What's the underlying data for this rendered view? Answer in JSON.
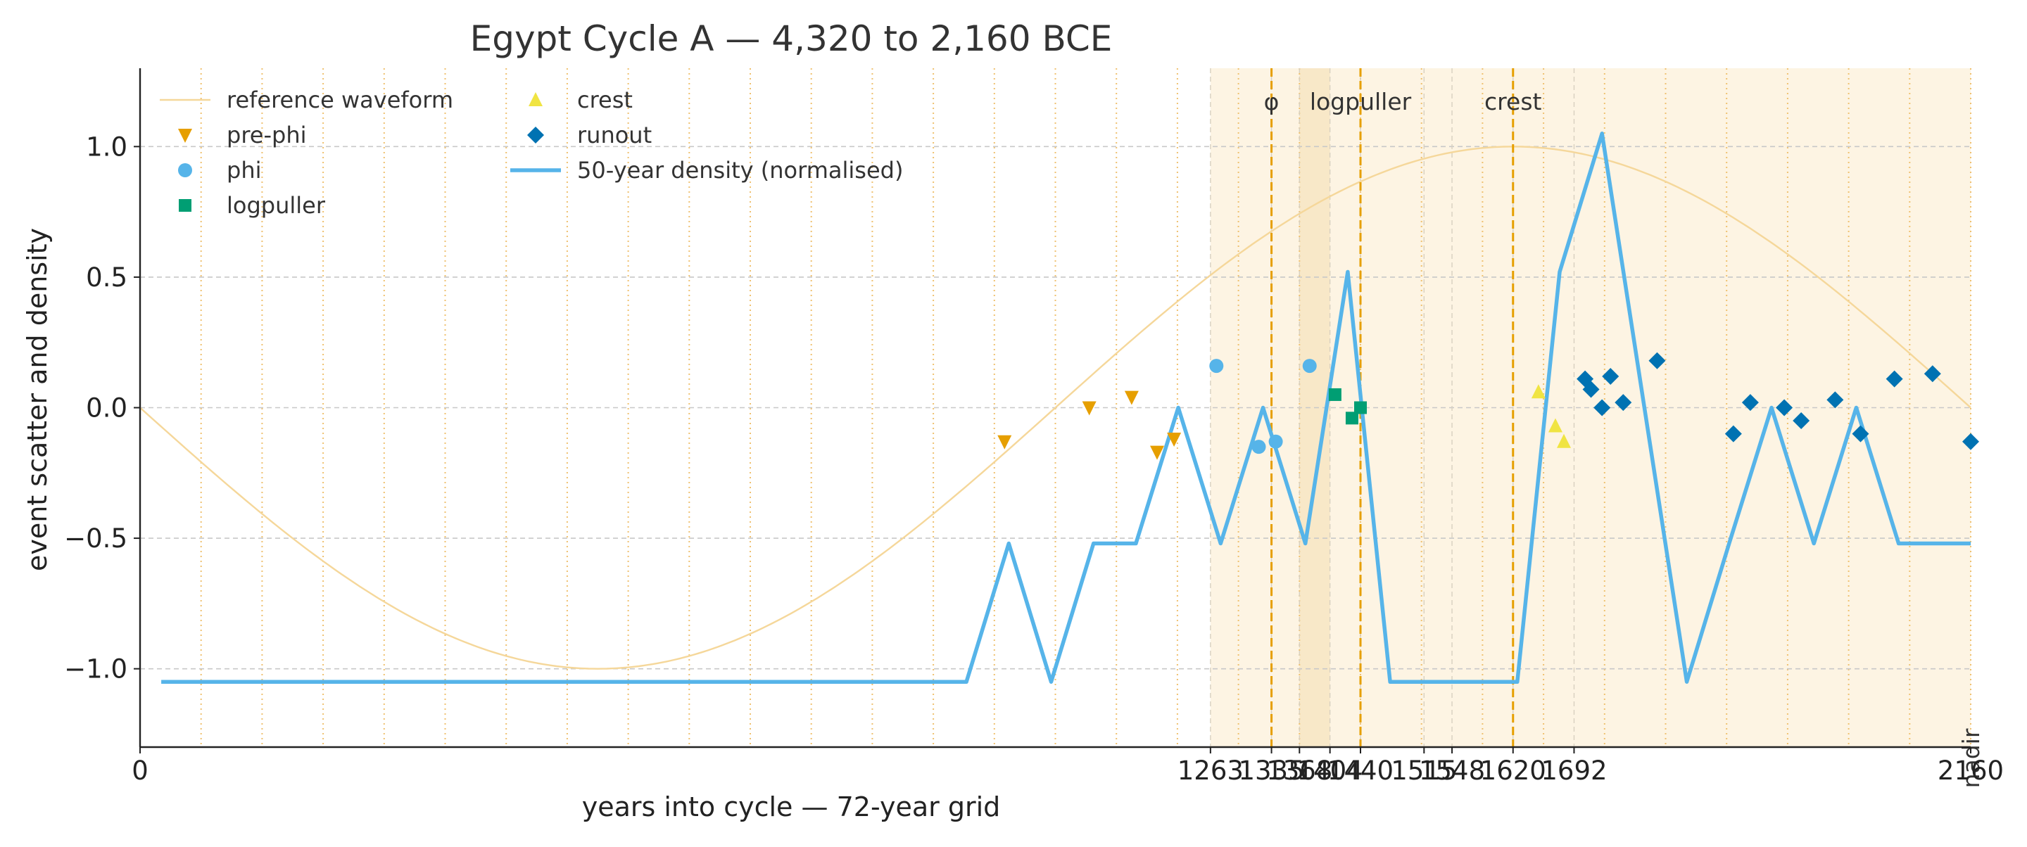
{
  "chart_data": {
    "type": "scatter",
    "title": "Egypt Cycle A — 4,320 to 2,160 BCE",
    "xlabel": "years into cycle — 72-year grid",
    "ylabel": "event scatter and density",
    "xlim": [
      0,
      2160
    ],
    "ylim": [
      -1.3,
      1.3
    ],
    "grid": true,
    "legend_position": "top-left",
    "x_ticks": [
      0,
      1263,
      1335,
      1368,
      1404,
      1440,
      1515,
      1548,
      1620,
      1692,
      2160
    ],
    "x_tick_labels": [
      "0",
      "1263",
      "1335",
      "1368",
      "1404",
      "1440",
      "1515",
      "1548",
      "1620",
      "1692",
      "2160"
    ],
    "y_ticks": [
      -1.0,
      -0.5,
      0.0,
      0.5,
      1.0
    ],
    "y_tick_labels": [
      "−1.0",
      "−0.5",
      "0.0",
      "0.5",
      "1.0"
    ],
    "vertical_grid_step": 72,
    "shaded_region": [
      1263,
      2160
    ],
    "phi_band": [
      1368,
      1404
    ],
    "markers": [
      {
        "x": 1335,
        "label": "φ"
      },
      {
        "x": 1440,
        "label": "logpuller"
      },
      {
        "x": 1620,
        "label": "crest"
      }
    ],
    "end_label": {
      "x": 2160,
      "label": "nadir"
    },
    "reference_waveform": {
      "name": "reference waveform",
      "form": "negative sine over one cycle",
      "amplitude": 1.0,
      "period": 2160,
      "color": "#f5d79a"
    },
    "series": [
      {
        "name": "pre-phi",
        "marker": "triangle-down",
        "color": "#E69F00",
        "points": [
          [
            1020,
            -0.13
          ],
          [
            1120,
            0.0
          ],
          [
            1170,
            0.04
          ],
          [
            1200,
            -0.17
          ],
          [
            1220,
            -0.12
          ]
        ]
      },
      {
        "name": "phi",
        "marker": "circle",
        "color": "#56B4E9",
        "points": [
          [
            1270,
            0.16
          ],
          [
            1320,
            -0.15
          ],
          [
            1340,
            -0.13
          ],
          [
            1380,
            0.16
          ]
        ]
      },
      {
        "name": "logpuller",
        "marker": "square",
        "color": "#009E73",
        "points": [
          [
            1410,
            0.05
          ],
          [
            1430,
            -0.04
          ],
          [
            1440,
            0.0
          ]
        ]
      },
      {
        "name": "crest",
        "marker": "triangle-up",
        "color": "#F0E442",
        "points": [
          [
            1650,
            0.06
          ],
          [
            1670,
            -0.07
          ],
          [
            1680,
            -0.13
          ]
        ]
      },
      {
        "name": "runout",
        "marker": "diamond",
        "color": "#0072B2",
        "points": [
          [
            1705,
            0.11
          ],
          [
            1712,
            0.07
          ],
          [
            1725,
            0.0
          ],
          [
            1735,
            0.12
          ],
          [
            1750,
            0.02
          ],
          [
            1790,
            0.18
          ],
          [
            1880,
            -0.1
          ],
          [
            1900,
            0.02
          ],
          [
            1940,
            0.0
          ],
          [
            1960,
            -0.05
          ],
          [
            2000,
            0.03
          ],
          [
            2030,
            -0.1
          ],
          [
            2070,
            0.11
          ],
          [
            2115,
            0.13
          ],
          [
            2160,
            -0.13
          ]
        ]
      },
      {
        "name": "50-year density (normalised)",
        "type": "line",
        "color": "#56B4E9",
        "points": [
          [
            25,
            -1.05
          ],
          [
            975,
            -1.05
          ],
          [
            1025,
            -0.52
          ],
          [
            1075,
            -1.05
          ],
          [
            1125,
            -0.52
          ],
          [
            1175,
            -0.52
          ],
          [
            1225,
            0.0
          ],
          [
            1275,
            -0.52
          ],
          [
            1325,
            0.0
          ],
          [
            1375,
            -0.52
          ],
          [
            1425,
            0.52
          ],
          [
            1475,
            -1.05
          ],
          [
            1525,
            -1.05
          ],
          [
            1575,
            -1.05
          ],
          [
            1625,
            -1.05
          ],
          [
            1675,
            0.52
          ],
          [
            1725,
            1.05
          ],
          [
            1775,
            0.0
          ],
          [
            1825,
            -1.05
          ],
          [
            1875,
            -0.52
          ],
          [
            1925,
            0.0
          ],
          [
            1975,
            -0.52
          ],
          [
            2025,
            0.0
          ],
          [
            2075,
            -0.52
          ],
          [
            2125,
            -0.52
          ],
          [
            2160,
            -0.52
          ]
        ]
      }
    ]
  }
}
